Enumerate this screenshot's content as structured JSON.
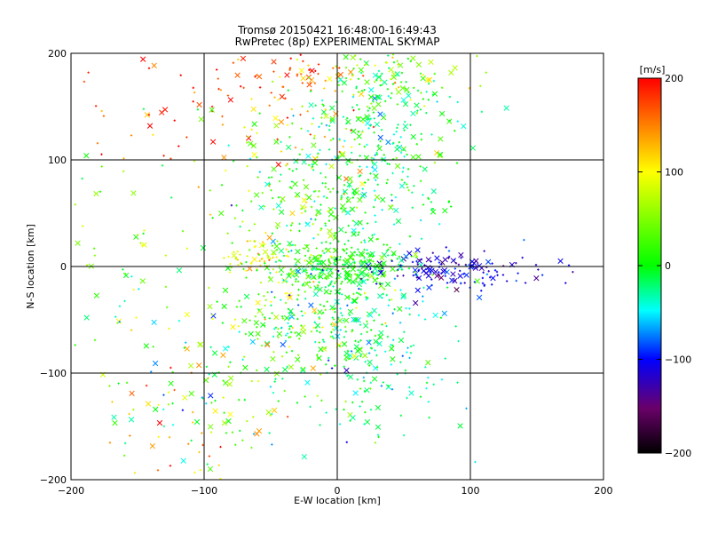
{
  "chart_data": {
    "type": "scatter",
    "title": "Tromsø 20150421 16:48:00-16:49:43",
    "subtitle": "RwPretec (8p) EXPERIMENTAL SKYMAP",
    "xlabel": "E-W location [km]",
    "ylabel": "N-S location [km]",
    "xlim": [
      -200,
      200
    ],
    "ylim": [
      -200,
      200
    ],
    "x_ticks": [
      -200,
      -100,
      0,
      100,
      200
    ],
    "y_ticks": [
      -200,
      -100,
      0,
      100,
      200
    ],
    "grid": true,
    "grid_lines_x": [
      -100,
      0,
      100
    ],
    "grid_lines_y": [
      -100,
      0,
      100
    ],
    "colorbar": {
      "label": "[m/s]",
      "range": [
        -200,
        200
      ],
      "ticks": [
        -200,
        -100,
        0,
        100,
        200
      ],
      "colormap": "black-purple-blue-cyan-green-yellow-red"
    },
    "markers": {
      "dot": "+",
      "cross": "x"
    },
    "clusters": [
      {
        "center": [
          40,
          180
        ],
        "spread": [
          35,
          15
        ],
        "count": 70,
        "vel_mean": 60,
        "vel_sd": 40
      },
      {
        "center": [
          -30,
          180
        ],
        "spread": [
          25,
          15
        ],
        "count": 60,
        "vel_mean": 170,
        "vel_sd": 30
      },
      {
        "center": [
          -110,
          150
        ],
        "spread": [
          35,
          30
        ],
        "count": 50,
        "vel_mean": 180,
        "vel_sd": 30
      },
      {
        "center": [
          35,
          140
        ],
        "spread": [
          25,
          40
        ],
        "count": 150,
        "vel_mean": -20,
        "vel_sd": 25
      },
      {
        "center": [
          -20,
          120
        ],
        "spread": [
          35,
          40
        ],
        "count": 100,
        "vel_mean": 80,
        "vel_sd": 60
      },
      {
        "center": [
          25,
          65
        ],
        "spread": [
          30,
          40
        ],
        "count": 200,
        "vel_mean": -10,
        "vel_sd": 30
      },
      {
        "center": [
          -30,
          60
        ],
        "spread": [
          35,
          40
        ],
        "count": 150,
        "vel_mean": 20,
        "vel_sd": 40
      },
      {
        "center": [
          -60,
          5
        ],
        "spread": [
          15,
          10
        ],
        "count": 60,
        "vel_mean": 100,
        "vel_sd": 25
      },
      {
        "center": [
          0,
          0
        ],
        "spread": [
          25,
          12
        ],
        "count": 250,
        "vel_mean": 10,
        "vel_sd": 25
      },
      {
        "center": [
          80,
          -5
        ],
        "spread": [
          35,
          10
        ],
        "count": 150,
        "vel_mean": -110,
        "vel_sd": 20
      },
      {
        "center": [
          -30,
          -50
        ],
        "spread": [
          25,
          30
        ],
        "count": 150,
        "vel_mean": 20,
        "vel_sd": 50
      },
      {
        "center": [
          25,
          -70
        ],
        "spread": [
          30,
          40
        ],
        "count": 220,
        "vel_mean": -20,
        "vel_sd": 25
      },
      {
        "center": [
          -60,
          -100
        ],
        "spread": [
          50,
          50
        ],
        "count": 150,
        "vel_mean": 30,
        "vel_sd": 60
      },
      {
        "center": [
          -110,
          -150
        ],
        "spread": [
          30,
          30
        ],
        "count": 60,
        "vel_mean": 80,
        "vel_sd": 70
      },
      {
        "center": [
          -160,
          20
        ],
        "spread": [
          30,
          60
        ],
        "count": 50,
        "vel_mean": 40,
        "vel_sd": 50
      }
    ]
  }
}
